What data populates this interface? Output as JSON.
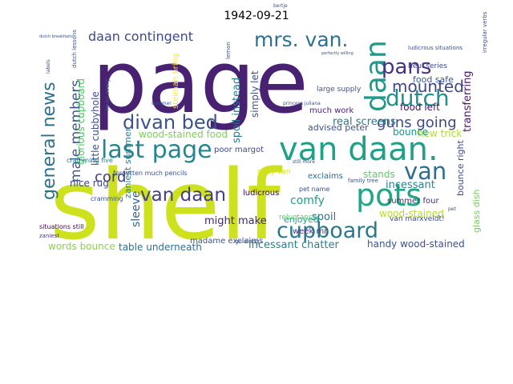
{
  "title": "1942-09-21",
  "words": [
    {
      "text": "page",
      "color": "#482173"
    },
    {
      "text": "shelf",
      "color": "#cde11d"
    },
    {
      "text": "van daan.",
      "color": "#1fa187"
    },
    {
      "text": "last page",
      "color": "#25858e"
    },
    {
      "text": "mrs. van.",
      "color": "#2c728e"
    },
    {
      "text": "pots",
      "color": "#22a785"
    },
    {
      "text": "cupboard",
      "color": "#2a788e"
    },
    {
      "text": "daan",
      "color": "#1f9a8a"
    },
    {
      "text": "pans",
      "color": "#46327e"
    },
    {
      "text": "dutch",
      "color": "#21918c"
    },
    {
      "text": "divan bed",
      "color": "#3b528b"
    },
    {
      "text": "van",
      "color": "#2e6e8e"
    },
    {
      "text": "general news",
      "color": "#2d708e"
    },
    {
      "text": "van daan",
      "color": "#433e85"
    },
    {
      "text": "mounted",
      "color": "#3f4788"
    },
    {
      "text": "daan contingent",
      "color": "#3e4989"
    },
    {
      "text": "male members",
      "color": "#3a548c"
    },
    {
      "text": "guns going",
      "color": "#3e4a89"
    },
    {
      "text": "cord",
      "color": "#443983"
    },
    {
      "text": "food safe",
      "color": "#38588c"
    },
    {
      "text": "food left",
      "color": "#471164"
    },
    {
      "text": "glorious cupboard",
      "color": "#50c46a"
    },
    {
      "text": "little cubbyhole",
      "color": "#3d4e8a"
    },
    {
      "text": "spoil instead",
      "color": "#2a788e"
    },
    {
      "text": "simply let",
      "color": "#3b528b"
    },
    {
      "text": "transferring",
      "color": "#48186a"
    },
    {
      "text": "real screens",
      "color": "#2a788e"
    },
    {
      "text": "advised peter",
      "color": "#3b528b"
    },
    {
      "text": "wood-stained food",
      "color": "#7ad151"
    },
    {
      "text": "new trick",
      "color": "#addc30"
    },
    {
      "text": "bounce",
      "color": "#21918c"
    },
    {
      "text": "much work",
      "color": "#481f70"
    },
    {
      "text": "heul series",
      "color": "#3e4989"
    },
    {
      "text": "ludicrous situations",
      "color": "#3b528b"
    },
    {
      "text": "nice rug",
      "color": "#3e4989"
    },
    {
      "text": "sleeve",
      "color": "#32658e"
    },
    {
      "text": "might make",
      "color": "#482475"
    },
    {
      "text": "incessant",
      "color": "#26828e"
    },
    {
      "text": "bounce right",
      "color": "#3e4a89"
    },
    {
      "text": "glass dish",
      "color": "#73d056"
    },
    {
      "text": "comfy",
      "color": "#1fa088"
    },
    {
      "text": "wood-stained",
      "color": "#b5de2b"
    },
    {
      "text": "stands",
      "color": "#5ec962"
    },
    {
      "text": "spoil",
      "color": "#2c728e"
    },
    {
      "text": "enjoyed",
      "color": "#20a386"
    },
    {
      "text": "exclaims",
      "color": "#31688e"
    },
    {
      "text": "madame exclaims",
      "color": "#3b528b"
    },
    {
      "text": "poor margot",
      "color": "#3f4788"
    },
    {
      "text": "table underneath",
      "color": "#2d708e"
    },
    {
      "text": "words bounce",
      "color": "#86d549"
    },
    {
      "text": "incessant chatter",
      "color": "#27808e"
    },
    {
      "text": "handy wood-stained",
      "color": "#3b528b"
    },
    {
      "text": "summer four",
      "color": "#472c7a"
    },
    {
      "text": "van marxveldt!",
      "color": "#3e4989"
    },
    {
      "text": "zaniest summer",
      "color": "#26828e"
    },
    {
      "text": "cissy van",
      "color": "#d8e219"
    },
    {
      "text": "ludicrous",
      "color": "#440154"
    },
    {
      "text": "pet name",
      "color": "#3b528b"
    },
    {
      "text": "reluctance",
      "color": "#5ec962"
    },
    {
      "text": "week mr.",
      "color": "#46327e"
    },
    {
      "text": "cramming",
      "color": "#3b528b"
    },
    {
      "text": "cramming five",
      "color": "#2a788e"
    },
    {
      "text": "forgotten much pencils",
      "color": "#3b528b"
    },
    {
      "text": "situations still",
      "color": "#440154"
    },
    {
      "text": "zaniest",
      "color": "#46327e"
    },
    {
      "text": "large supply",
      "color": "#3b528b"
    },
    {
      "text": "family tree",
      "color": "#3b528b"
    },
    {
      "text": "still more",
      "color": "#3b528b"
    },
    {
      "text": "go along",
      "color": "#3b528b"
    },
    {
      "text": "bertje",
      "color": "#3b528b"
    },
    {
      "text": "lemon",
      "color": "#3b528b"
    },
    {
      "text": "steiman bring",
      "color": "#fde725"
    },
    {
      "text": "summer",
      "color": "#3b528b"
    },
    {
      "text": "head every",
      "color": "#3b528b"
    },
    {
      "text": "princess juliana",
      "color": "#3b528b"
    },
    {
      "text": "perfectly willing",
      "color": "#3b528b"
    },
    {
      "text": "dutch lessons",
      "color": "#3b528b"
    },
    {
      "text": "dutch breakfasts",
      "color": "#3b528b"
    },
    {
      "text": "labels",
      "color": "#3b528b"
    },
    {
      "text": "irregular verbs",
      "color": "#3b528b"
    },
    {
      "text": "pet",
      "color": "#3b528b"
    }
  ]
}
